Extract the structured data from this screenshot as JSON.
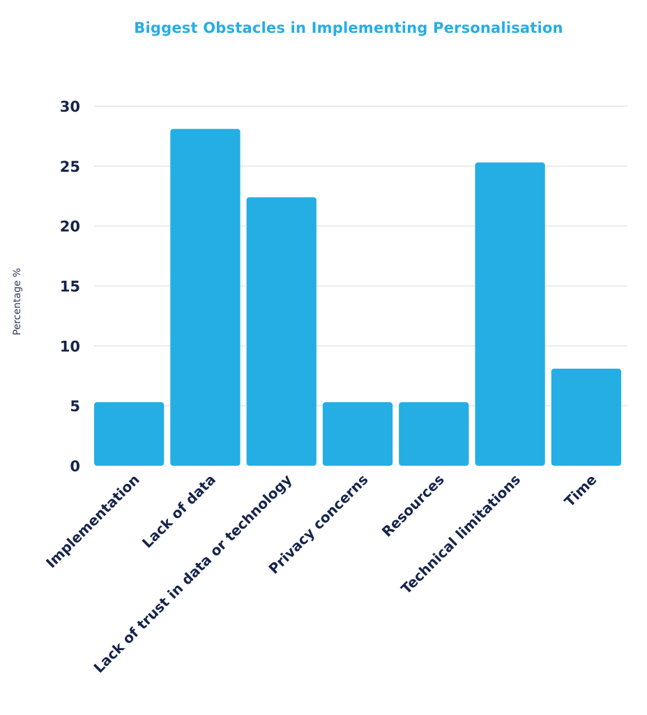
{
  "chart_data": {
    "type": "bar",
    "title": "Biggest Obstacles in Implementing Personalisation",
    "ylabel": "Percentage %",
    "xlabel": "",
    "categories": [
      "Implementation",
      "Lack of data",
      "Lack of trust in data or technology",
      "Privacy concerns",
      "Resources",
      "Technical limitations",
      "Time"
    ],
    "values": [
      5.3,
      28.1,
      22.4,
      5.3,
      5.3,
      25.3,
      8.1
    ],
    "ylim": [
      0,
      30
    ],
    "yticks": [
      0,
      5,
      10,
      15,
      20,
      25,
      30
    ],
    "grid": true,
    "legend": "none",
    "colors": {
      "bar": "#25aee4",
      "title": "#25aee4",
      "text": "#16244a",
      "grid": "#e3e6ea"
    }
  }
}
